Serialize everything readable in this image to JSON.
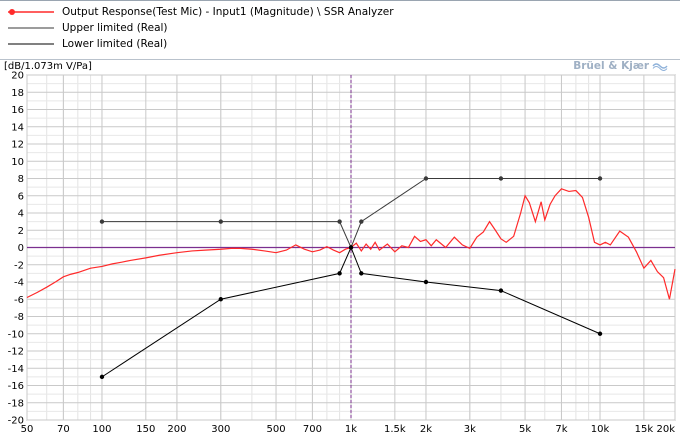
{
  "legend": {
    "items": [
      {
        "label": "Output Response(Test Mic) - Input1 (Magnitude) \\ SSR Analyzer",
        "color": "#ff2a2a",
        "marker": true
      },
      {
        "label": "Upper limited (Real)",
        "color": "#3a3a3a",
        "marker": false
      },
      {
        "label": "Lower limited (Real)",
        "color": "#000000",
        "marker": false
      }
    ]
  },
  "unit_label": "[dB/1.073m V/Pa]",
  "brand": "Brüel & Kjær",
  "brand_icon": "bk-logo-icon",
  "chart_data": {
    "type": "line",
    "xscale": "log",
    "xlim": [
      50,
      20000
    ],
    "ylim": [
      -20,
      20
    ],
    "xticks": [
      {
        "v": 50,
        "label": "50"
      },
      {
        "v": 70,
        "label": "70"
      },
      {
        "v": 100,
        "label": "100"
      },
      {
        "v": 150,
        "label": "150"
      },
      {
        "v": 200,
        "label": "200"
      },
      {
        "v": 300,
        "label": "300"
      },
      {
        "v": 500,
        "label": "500"
      },
      {
        "v": 700,
        "label": "700"
      },
      {
        "v": 1000,
        "label": "1k"
      },
      {
        "v": 1500,
        "label": "1.5k"
      },
      {
        "v": 2000,
        "label": "2k"
      },
      {
        "v": 3000,
        "label": "3k"
      },
      {
        "v": 5000,
        "label": "5k"
      },
      {
        "v": 7000,
        "label": "7k"
      },
      {
        "v": 10000,
        "label": "10k"
      },
      {
        "v": 15000,
        "label": "15k"
      },
      {
        "v": 20000,
        "label": "20k"
      }
    ],
    "yticks": [
      20,
      18,
      16,
      14,
      12,
      10,
      8,
      6,
      4,
      2,
      0,
      -2,
      -4,
      -6,
      -8,
      -10,
      -12,
      -14,
      -16,
      -18,
      -20
    ],
    "grid": true,
    "reference_lines": {
      "y": 0,
      "x": 1000,
      "color": "#7b2f8f"
    },
    "series": [
      {
        "name": "Output Response(Test Mic) - Input1 (Magnitude) \\ SSR Analyzer",
        "color": "#ff2a2a",
        "x": [
          50,
          55,
          60,
          65,
          70,
          75,
          80,
          90,
          100,
          110,
          120,
          130,
          150,
          170,
          200,
          230,
          260,
          300,
          330,
          360,
          400,
          450,
          500,
          550,
          600,
          650,
          700,
          750,
          800,
          850,
          900,
          950,
          1000,
          1050,
          1100,
          1150,
          1200,
          1250,
          1300,
          1400,
          1500,
          1600,
          1700,
          1800,
          1900,
          2000,
          2100,
          2200,
          2400,
          2600,
          2800,
          3000,
          3200,
          3400,
          3600,
          3800,
          4000,
          4200,
          4500,
          4800,
          5000,
          5200,
          5500,
          5800,
          6000,
          6300,
          6600,
          7000,
          7500,
          8000,
          8500,
          9000,
          9500,
          10000,
          10500,
          11000,
          12000,
          13000,
          14000,
          15000,
          16000,
          17000,
          18000,
          19000,
          20000
        ],
        "y": [
          -5.8,
          -5.2,
          -4.6,
          -4.0,
          -3.4,
          -3.1,
          -2.9,
          -2.4,
          -2.2,
          -1.9,
          -1.7,
          -1.5,
          -1.2,
          -0.9,
          -0.6,
          -0.4,
          -0.3,
          -0.2,
          -0.1,
          -0.1,
          -0.2,
          -0.4,
          -0.6,
          -0.3,
          0.3,
          -0.2,
          -0.5,
          -0.3,
          0.1,
          -0.3,
          -0.6,
          -0.2,
          0.0,
          0.5,
          -0.4,
          0.4,
          -0.2,
          0.6,
          -0.3,
          0.4,
          -0.5,
          0.2,
          0.0,
          1.3,
          0.7,
          0.9,
          0.2,
          0.9,
          0.0,
          1.2,
          0.3,
          -0.1,
          1.2,
          1.8,
          3.0,
          2.0,
          1.0,
          0.6,
          1.3,
          4.0,
          6.0,
          5.2,
          3.0,
          5.3,
          3.2,
          5.0,
          6.0,
          6.8,
          6.5,
          6.6,
          5.8,
          3.5,
          0.6,
          0.3,
          0.6,
          0.3,
          1.9,
          1.2,
          -0.5,
          -2.4,
          -1.5,
          -2.8,
          -3.5,
          -6.0,
          -2.5
        ]
      },
      {
        "name": "Upper limited (Real)",
        "color": "#3a3a3a",
        "markers": true,
        "x": [
          100,
          300,
          900,
          1000,
          1100,
          2000,
          4000,
          10000
        ],
        "y": [
          3,
          3,
          3,
          0,
          3,
          8,
          8,
          8
        ]
      },
      {
        "name": "Lower limited (Real)",
        "color": "#000000",
        "markers": true,
        "x": [
          100,
          300,
          900,
          1000,
          1100,
          2000,
          4000,
          10000
        ],
        "y": [
          -15,
          -6,
          -3,
          0,
          -3,
          -4,
          -5,
          -10
        ]
      }
    ]
  }
}
